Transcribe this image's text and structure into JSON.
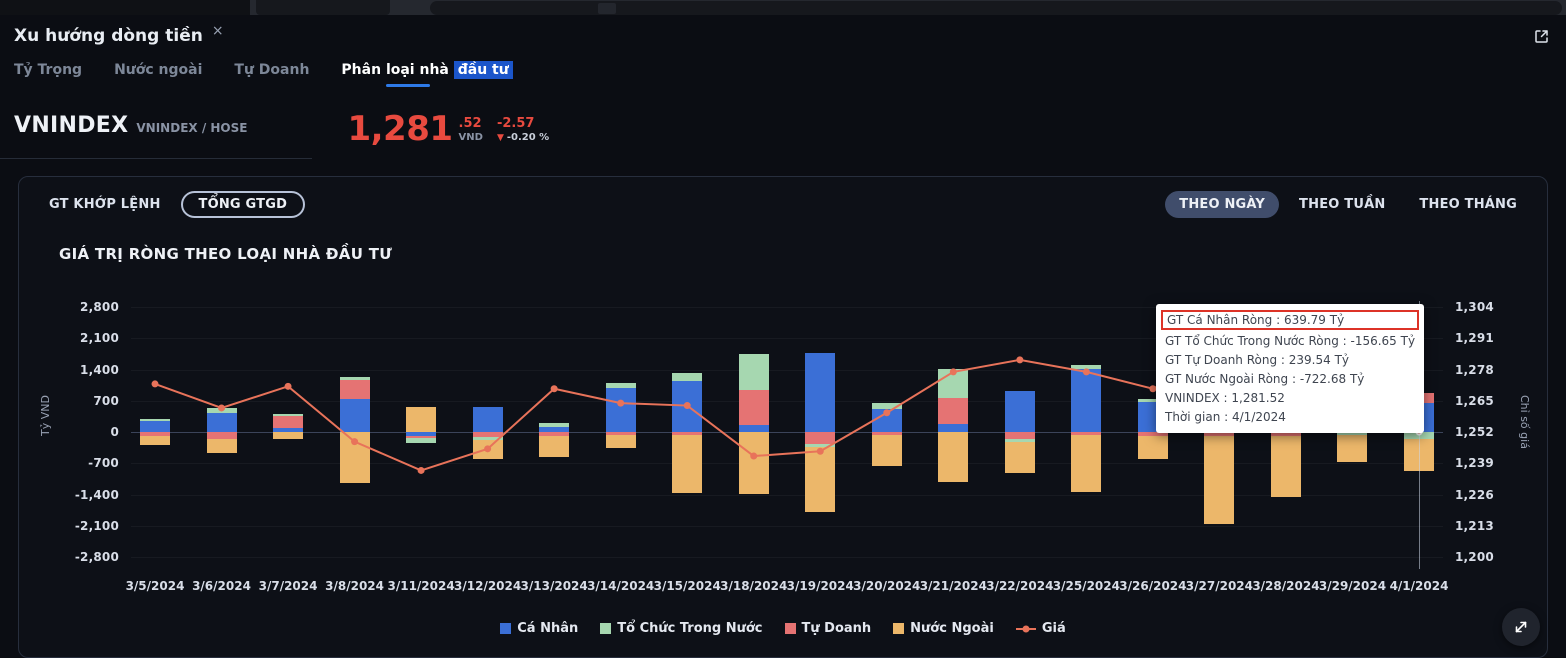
{
  "colors": {
    "accent_blue": "#1b55ca",
    "negative_red": "#e84a3f",
    "panel_bg": "#0d1017",
    "page_bg": "#0b0d13"
  },
  "window": {
    "tab_title": "Xu hướng dòng tiền",
    "close_icon": "×"
  },
  "subtabs": [
    {
      "label": "Tỷ Trọng",
      "active": false
    },
    {
      "label": "Nước ngoài",
      "active": false
    },
    {
      "label": "Tự Doanh",
      "active": false
    },
    {
      "label_prefix": "Phân loại nhà ",
      "label_highlight": "đầu tư",
      "active": true
    }
  ],
  "quote": {
    "symbol": "VNINDEX",
    "exchange": "VNINDEX / HOSE",
    "price": "1,281",
    "price_decimal": ".52",
    "currency": "VND",
    "change": "-2.57",
    "direction_icon": "▼",
    "change_percent": "-0.20 %"
  },
  "panel": {
    "value_toggles": [
      {
        "label": "GT KHỚP LỆNH",
        "active": false
      },
      {
        "label": "TỔNG GTGD",
        "active": true
      }
    ],
    "period_toggles": [
      {
        "label": "THEO NGÀY",
        "active": true
      },
      {
        "label": "THEO TUẦN",
        "active": false
      },
      {
        "label": "THEO THÁNG",
        "active": false
      }
    ],
    "chart_title": "GIÁ TRỊ RÒNG THEO LOẠI NHÀ ĐẦU TƯ"
  },
  "tooltip": {
    "rows": [
      {
        "text": "GT Cá Nhân Ròng  : 639.79 Tỷ",
        "highlighted": true
      },
      {
        "text": "GT Tổ Chức Trong Nước Ròng : -156.65 Tỷ",
        "highlighted": false
      },
      {
        "text": "GT Tự Doanh Ròng : 239.54 Tỷ",
        "highlighted": false
      },
      {
        "text": "GT Nước Ngoài Ròng : -722.68 Tỷ",
        "highlighted": false
      },
      {
        "text": "VNINDEX : 1,281.52",
        "highlighted": false
      },
      {
        "text": "Thời gian : 4/1/2024",
        "highlighted": false
      }
    ]
  },
  "chart_data": {
    "type": "bar",
    "subtype": "stacked-bar-with-price-line",
    "title": "GIÁ TRỊ RÒNG THEO LOẠI NHÀ ĐẦU TƯ",
    "ylabel_left": "Tỷ VND",
    "ylabel_right": "Chỉ số giá",
    "y_left_range": [
      -2800,
      2800
    ],
    "y_left_ticks": [
      "2,800",
      "2,100",
      "1,400",
      "700",
      "0",
      "-700",
      "-1,400",
      "-2,100",
      "-2,800"
    ],
    "y_right_range": [
      1200,
      1304
    ],
    "y_right_ticks": [
      "1,304",
      "1,291",
      "1,278",
      "1,265",
      "1,252",
      "1,239",
      "1,226",
      "1,213",
      "1,200"
    ],
    "grid": "horizontal-faint",
    "legend_position": "bottom",
    "categories": [
      "3/5/2024",
      "3/6/2024",
      "3/7/2024",
      "3/8/2024",
      "3/11/2024",
      "3/12/2024",
      "3/13/2024",
      "3/14/2024",
      "3/15/2024",
      "3/18/2024",
      "3/19/2024",
      "3/20/2024",
      "3/21/2024",
      "3/22/2024",
      "3/25/2024",
      "3/26/2024",
      "3/27/2024",
      "3/28/2024",
      "3/29/2024",
      "4/1/2024"
    ],
    "series": [
      {
        "name": "Cá Nhân",
        "color": "#3b6fd6",
        "values": [
          250,
          420,
          80,
          750,
          -80,
          560,
          120,
          980,
          1150,
          150,
          1780,
          520,
          180,
          920,
          1420,
          680,
          150,
          420,
          320,
          639.79
        ]
      },
      {
        "name": "Tổ Chức Trong Nước",
        "color": "#a6d7b0",
        "values": [
          50,
          120,
          40,
          70,
          -120,
          -60,
          80,
          120,
          180,
          820,
          -80,
          120,
          650,
          -70,
          90,
          60,
          280,
          60,
          -60,
          -156.65
        ]
      },
      {
        "name": "Tự Doanh",
        "color": "#e57373",
        "values": [
          -80,
          -150,
          280,
          420,
          -50,
          -120,
          -90,
          -70,
          -60,
          780,
          -260,
          -60,
          580,
          -160,
          -70,
          -90,
          -100,
          -80,
          90,
          239.54
        ]
      },
      {
        "name": "Nước Ngoài",
        "color": "#ecb76a",
        "values": [
          -220,
          -320,
          -150,
          -1150,
          550,
          -420,
          -480,
          -280,
          -1300,
          -1380,
          -1450,
          -700,
          -1120,
          -680,
          -1280,
          -520,
          -1950,
          -1380,
          -620,
          -722.68
        ]
      }
    ],
    "stack_render_order": [
      0,
      2,
      1,
      3
    ],
    "line_series": {
      "name": "Giá",
      "color": "#e8735a",
      "values": [
        1272,
        1262,
        1271,
        1248,
        1236,
        1245,
        1270,
        1264,
        1263,
        1242,
        1244,
        1260,
        1277,
        1282,
        1277,
        1270,
        1283,
        1285,
        1282,
        1281.52
      ]
    },
    "hover_index": 19
  }
}
